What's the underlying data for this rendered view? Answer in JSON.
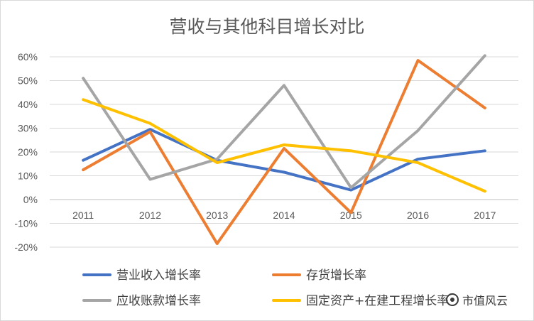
{
  "chart_data": {
    "type": "line",
    "title": "营收与其他科目增长对比",
    "categories": [
      "2011",
      "2012",
      "2013",
      "2014",
      "2015",
      "2016",
      "2017"
    ],
    "y_ticks": [
      "60%",
      "50%",
      "40%",
      "30%",
      "20%",
      "10%",
      "0%",
      "-10%",
      "-20%"
    ],
    "ylim": [
      -20,
      60
    ],
    "grid": true,
    "legend_position": "bottom",
    "series": [
      {
        "name": "营业收入增长率",
        "color": "#4472c4",
        "values": [
          16.5,
          29.5,
          16.5,
          11.5,
          4,
          17,
          20.5
        ]
      },
      {
        "name": "存货增长率",
        "color": "#ed7d31",
        "values": [
          12.5,
          28.5,
          -18.5,
          21.5,
          -5.5,
          58.5,
          38.5
        ]
      },
      {
        "name": "应收账款增长率",
        "color": "#a5a5a5",
        "values": [
          51,
          8.5,
          17,
          48,
          5,
          29,
          60.5
        ]
      },
      {
        "name": "固定资产+在建工程增长率",
        "color": "#ffc000",
        "values": [
          42,
          32,
          15.5,
          23,
          20.5,
          15.5,
          3.5
        ]
      }
    ]
  },
  "watermark": {
    "text": "市值风云",
    "icon": "company-logo-icon"
  }
}
